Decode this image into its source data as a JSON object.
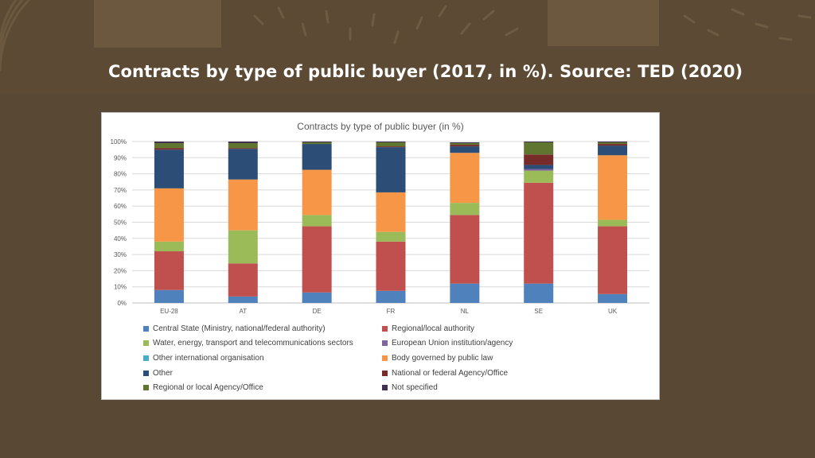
{
  "slide": {
    "title": "Contracts by type of public buyer (2017, in %). Source: TED (2020)"
  },
  "colors": {
    "background": "#594833",
    "title_text": "#ffffff"
  },
  "chart_data": {
    "type": "bar",
    "stacked": true,
    "title": "Contracts by type of public buyer (in %)",
    "categories": [
      "EU-28",
      "AT",
      "DE",
      "FR",
      "NL",
      "SE",
      "UK"
    ],
    "y_ticks": [
      "0%",
      "10%",
      "20%",
      "30%",
      "40%",
      "50%",
      "60%",
      "70%",
      "80%",
      "90%",
      "100%"
    ],
    "ylim": [
      0,
      100
    ],
    "grid": true,
    "legend_position": "bottom",
    "series": [
      {
        "name": "Central State (Ministry, national/federal authority)",
        "color": "#4f81bd",
        "values": [
          8,
          4,
          6.5,
          7.5,
          12,
          12,
          5.5
        ]
      },
      {
        "name": "Regional/local authority",
        "color": "#c0504d",
        "values": [
          24,
          20.5,
          41,
          30.5,
          42.5,
          62.5,
          42
        ]
      },
      {
        "name": "Water, energy, transport and telecommunications sectors",
        "color": "#9bbb59",
        "values": [
          6,
          20.5,
          7,
          6,
          7.5,
          7.5,
          4
        ]
      },
      {
        "name": "European Union institution/agency",
        "color": "#8064a2",
        "values": [
          0,
          0,
          0,
          0,
          0,
          1,
          0
        ]
      },
      {
        "name": "Other international organisation",
        "color": "#4bacc6",
        "values": [
          0,
          0,
          0,
          0,
          0,
          0,
          0
        ]
      },
      {
        "name": "Body governed by public law",
        "color": "#f79646",
        "values": [
          33,
          31.5,
          28,
          24.5,
          31,
          0,
          40
        ]
      },
      {
        "name": "Other",
        "color": "#2c4d75",
        "values": [
          24,
          19,
          16,
          28,
          4,
          2.5,
          6
        ]
      },
      {
        "name": "National or federal Agency/Office",
        "color": "#772c2a",
        "values": [
          1,
          0.5,
          0,
          0.5,
          1,
          6.5,
          1
        ]
      },
      {
        "name": "Regional or local Agency/Office",
        "color": "#5f7530",
        "values": [
          3,
          3,
          1,
          2.5,
          1,
          7.5,
          1
        ]
      },
      {
        "name": "Not specified",
        "color": "#403152",
        "values": [
          1,
          1,
          0.5,
          0.5,
          0.5,
          0.5,
          0.5
        ]
      }
    ]
  }
}
